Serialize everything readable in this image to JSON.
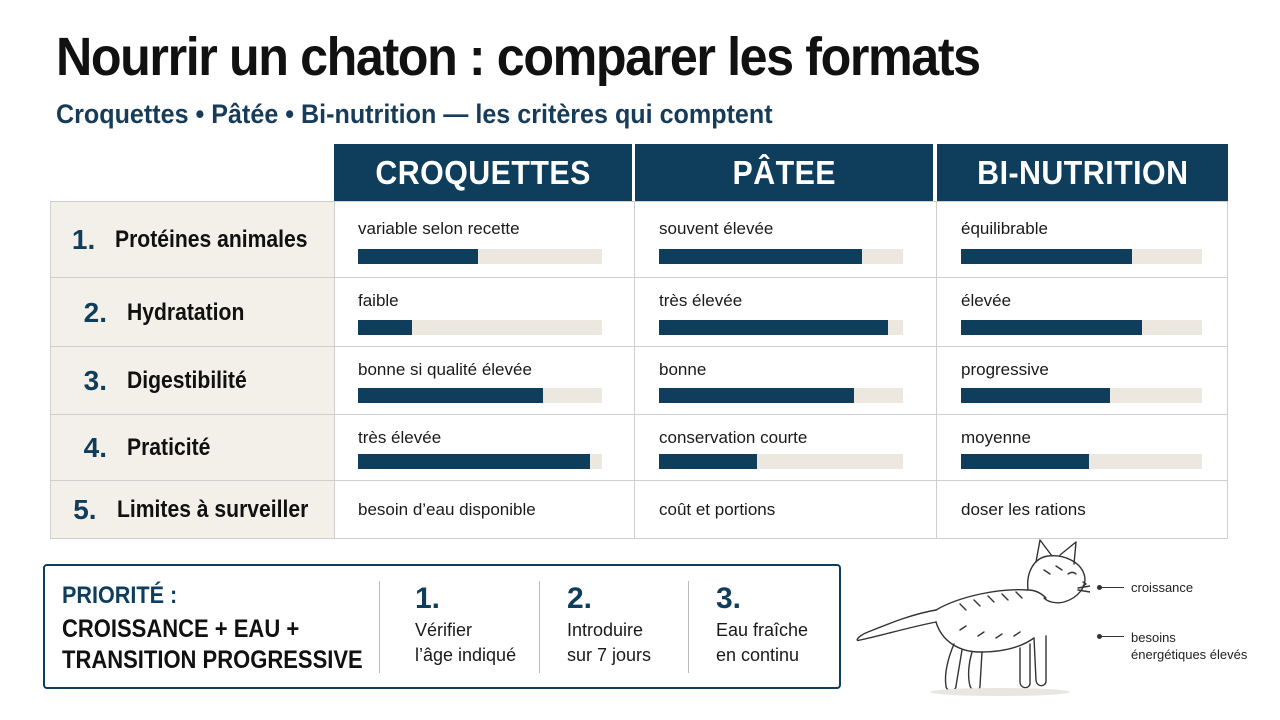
{
  "title": "Nourrir un chaton : comparer les formats",
  "subtitle": "Croquettes • Pâtée • Bi-nutrition — les critères qui comptent",
  "columns": [
    "CROQUETTES",
    "PÂTEE",
    "BI-NUTRITION"
  ],
  "rows": [
    {
      "num": "1.",
      "label": "Protéines animales",
      "cells": [
        {
          "text": "variable selon recette",
          "level": 0.49
        },
        {
          "text": "souvent élevée",
          "level": 0.83
        },
        {
          "text": "équilibrable",
          "level": 0.71
        }
      ]
    },
    {
      "num": "2.",
      "label": "Hydratation",
      "cells": [
        {
          "text": "faible",
          "level": 0.22
        },
        {
          "text": "très élevée",
          "level": 0.94
        },
        {
          "text": "élevée",
          "level": 0.75
        }
      ]
    },
    {
      "num": "3.",
      "label": "Digestibilité",
      "cells": [
        {
          "text": "bonne si qualité élevée",
          "level": 0.76
        },
        {
          "text": "bonne",
          "level": 0.8
        },
        {
          "text": "progressive",
          "level": 0.62
        }
      ]
    },
    {
      "num": "4.",
      "label": "Praticité",
      "cells": [
        {
          "text": "très élevée",
          "level": 0.95
        },
        {
          "text": "conservation courte",
          "level": 0.4
        },
        {
          "text": "moyenne",
          "level": 0.53
        }
      ]
    },
    {
      "num": "5.",
      "label": "Limites à surveiller",
      "cells": [
        {
          "text": "besoin d’eau disponible"
        },
        {
          "text": "coût et portions"
        },
        {
          "text": "doser les rations"
        }
      ]
    }
  ],
  "priority": {
    "label": "PRIORITÉ :",
    "line1": "CROISSANCE + EAU +",
    "line2": "TRANSITION PROGRESSIVE"
  },
  "steps": [
    {
      "num": "1.",
      "line1": "Vérifier",
      "line2": "l’âge indiqué"
    },
    {
      "num": "2.",
      "line1": "Introduire",
      "line2": "sur 7 jours"
    },
    {
      "num": "3.",
      "line1": "Eau fraîche",
      "line2": "en continu"
    }
  ],
  "cat_callouts": {
    "growth": "croissance",
    "needs_line1": "besoins",
    "needs_line2": "énergétiques élevés"
  },
  "colors": {
    "navy": "#0f3d5c",
    "bar_track": "#ece8df",
    "label_bg": "#f3f0e9"
  },
  "icons": [
    "kitten-illustration"
  ]
}
